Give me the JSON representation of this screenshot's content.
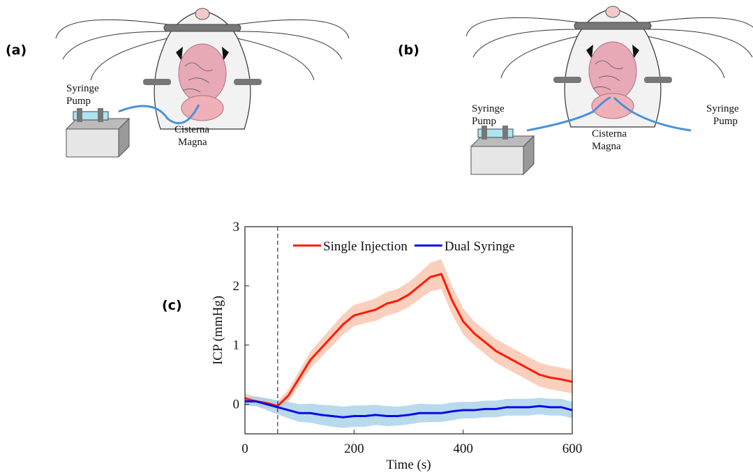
{
  "panels": {
    "a": {
      "label": "(a)",
      "pump": [
        "Syringe",
        "Pump"
      ],
      "target": [
        "Cisterna",
        "Magna"
      ]
    },
    "b": {
      "label": "(b)",
      "pump_left": [
        "Syringe",
        "Pump"
      ],
      "target": [
        "Cisterna",
        "Magna"
      ],
      "pump_right": [
        "Syringe",
        "Pump"
      ]
    },
    "c": {
      "label": "(c)"
    }
  },
  "chart_data": {
    "type": "line",
    "x_label": "Time (s)",
    "y_label": "ICP (mmHg)",
    "x": [
      0,
      20,
      40,
      60,
      80,
      100,
      120,
      140,
      160,
      180,
      200,
      220,
      240,
      260,
      280,
      300,
      320,
      340,
      360,
      380,
      400,
      420,
      440,
      460,
      480,
      500,
      520,
      540,
      560,
      580,
      600
    ],
    "series": [
      {
        "name": "Single Injection",
        "color": "#ff1a00",
        "band_color": "#f9c3ad",
        "values": [
          0.1,
          0.05,
          0.02,
          -0.03,
          0.15,
          0.45,
          0.75,
          0.95,
          1.15,
          1.35,
          1.5,
          1.55,
          1.6,
          1.7,
          1.75,
          1.85,
          2.0,
          2.15,
          2.2,
          1.75,
          1.4,
          1.2,
          1.05,
          0.9,
          0.8,
          0.7,
          0.6,
          0.5,
          0.45,
          0.42,
          0.38
        ],
        "errors": [
          0.08,
          0.08,
          0.08,
          0.08,
          0.1,
          0.12,
          0.14,
          0.15,
          0.16,
          0.17,
          0.18,
          0.18,
          0.19,
          0.2,
          0.2,
          0.21,
          0.22,
          0.24,
          0.25,
          0.24,
          0.22,
          0.2,
          0.2,
          0.2,
          0.2,
          0.2,
          0.2,
          0.2,
          0.2,
          0.2,
          0.2
        ]
      },
      {
        "name": "Dual Syringe",
        "color": "#0a0ae6",
        "band_color": "#a8d0e8",
        "values": [
          0.05,
          0.05,
          0.0,
          -0.05,
          -0.1,
          -0.15,
          -0.15,
          -0.18,
          -0.2,
          -0.22,
          -0.2,
          -0.2,
          -0.18,
          -0.2,
          -0.2,
          -0.18,
          -0.15,
          -0.15,
          -0.15,
          -0.12,
          -0.1,
          -0.1,
          -0.08,
          -0.08,
          -0.05,
          -0.05,
          -0.05,
          -0.03,
          -0.05,
          -0.05,
          -0.1
        ],
        "errors": [
          0.08,
          0.08,
          0.1,
          0.12,
          0.14,
          0.15,
          0.16,
          0.17,
          0.18,
          0.18,
          0.18,
          0.18,
          0.17,
          0.17,
          0.16,
          0.16,
          0.16,
          0.15,
          0.15,
          0.15,
          0.14,
          0.14,
          0.14,
          0.14,
          0.14,
          0.14,
          0.14,
          0.14,
          0.14,
          0.14,
          0.14
        ]
      }
    ],
    "vline": 60,
    "xlim": [
      0,
      600
    ],
    "xticks": [
      0,
      200,
      400,
      600
    ],
    "ylim": [
      -0.5,
      3
    ],
    "yticks": [
      0,
      1,
      2,
      3
    ]
  }
}
